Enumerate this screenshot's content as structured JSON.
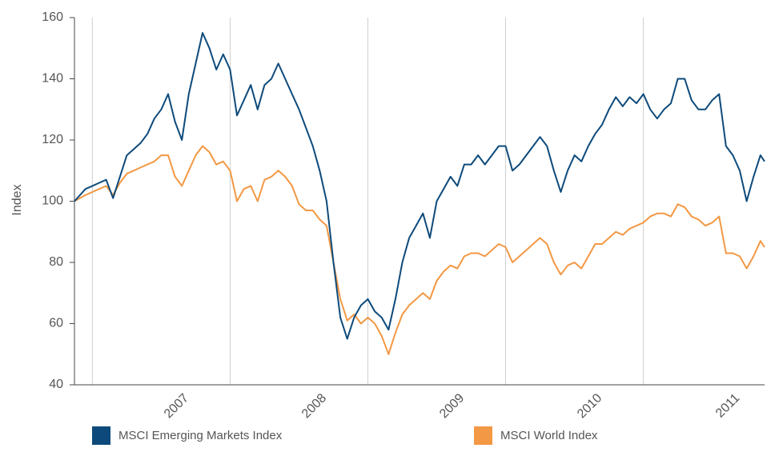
{
  "chart_data": {
    "type": "line",
    "ylabel": "Index",
    "x": [
      2006.87,
      2006.95,
      2007.0,
      2007.05,
      2007.1,
      2007.15,
      2007.2,
      2007.25,
      2007.3,
      2007.35,
      2007.4,
      2007.45,
      2007.5,
      2007.55,
      2007.6,
      2007.65,
      2007.7,
      2007.75,
      2007.8,
      2007.85,
      2007.9,
      2007.95,
      2008.0,
      2008.05,
      2008.1,
      2008.15,
      2008.2,
      2008.25,
      2008.3,
      2008.35,
      2008.4,
      2008.45,
      2008.5,
      2008.55,
      2008.6,
      2008.65,
      2008.7,
      2008.75,
      2008.8,
      2008.85,
      2008.9,
      2008.95,
      2009.0,
      2009.05,
      2009.1,
      2009.15,
      2009.2,
      2009.25,
      2009.3,
      2009.35,
      2009.4,
      2009.45,
      2009.5,
      2009.55,
      2009.6,
      2009.65,
      2009.7,
      2009.75,
      2009.8,
      2009.85,
      2009.9,
      2009.95,
      2010.0,
      2010.05,
      2010.1,
      2010.15,
      2010.2,
      2010.25,
      2010.3,
      2010.35,
      2010.4,
      2010.45,
      2010.5,
      2010.55,
      2010.6,
      2010.65,
      2010.7,
      2010.75,
      2010.8,
      2010.85,
      2010.9,
      2010.95,
      2011.0,
      2011.05,
      2011.1,
      2011.15,
      2011.2,
      2011.25,
      2011.3,
      2011.35,
      2011.4,
      2011.45,
      2011.5,
      2011.55,
      2011.6,
      2011.65,
      2011.7,
      2011.75,
      2011.8,
      2011.85,
      2011.88
    ],
    "series": [
      {
        "name": "MSCI Emerging Markets Index",
        "color": "#0d4a7b",
        "values": [
          100,
          104,
          105,
          106,
          107,
          101,
          108,
          115,
          117,
          119,
          122,
          127,
          130,
          135,
          126,
          120,
          135,
          145,
          155,
          150,
          143,
          148,
          143,
          128,
          133,
          138,
          130,
          138,
          140,
          145,
          140,
          135,
          130,
          124,
          118,
          110,
          100,
          80,
          62,
          55,
          62,
          66,
          68,
          64,
          62,
          58,
          68,
          80,
          88,
          92,
          96,
          88,
          100,
          104,
          108,
          105,
          112,
          112,
          115,
          112,
          115,
          118,
          118,
          110,
          112,
          115,
          118,
          121,
          118,
          110,
          103,
          110,
          115,
          113,
          118,
          122,
          125,
          130,
          134,
          131,
          134,
          132,
          135,
          130,
          127,
          130,
          132,
          140,
          140,
          133,
          130,
          130,
          133,
          135,
          118,
          115,
          110,
          100,
          108,
          115,
          113
        ]
      },
      {
        "name": "MSCI World Index",
        "color": "#f39844",
        "values": [
          100,
          102,
          103,
          104,
          105,
          102,
          106,
          109,
          110,
          111,
          112,
          113,
          115,
          115,
          108,
          105,
          110,
          115,
          118,
          116,
          112,
          113,
          110,
          100,
          104,
          105,
          100,
          107,
          108,
          110,
          108,
          105,
          99,
          97,
          97,
          94,
          92,
          80,
          68,
          61,
          63,
          60,
          62,
          60,
          56,
          50,
          57,
          63,
          66,
          68,
          70,
          68,
          74,
          77,
          79,
          78,
          82,
          83,
          83,
          82,
          84,
          86,
          85,
          80,
          82,
          84,
          86,
          88,
          86,
          80,
          76,
          79,
          80,
          78,
          82,
          86,
          86,
          88,
          90,
          89,
          91,
          92,
          93,
          95,
          96,
          96,
          95,
          99,
          98,
          95,
          94,
          92,
          93,
          95,
          83,
          83,
          82,
          78,
          82,
          87,
          85
        ]
      }
    ],
    "xlim": [
      2006.87,
      2011.88
    ],
    "xticks": [
      2007,
      2008,
      2009,
      2010,
      2011
    ],
    "ylim": [
      40,
      160
    ],
    "yticks": [
      40,
      60,
      80,
      100,
      120,
      140,
      160
    ],
    "grid": true,
    "legend": "bottom"
  }
}
